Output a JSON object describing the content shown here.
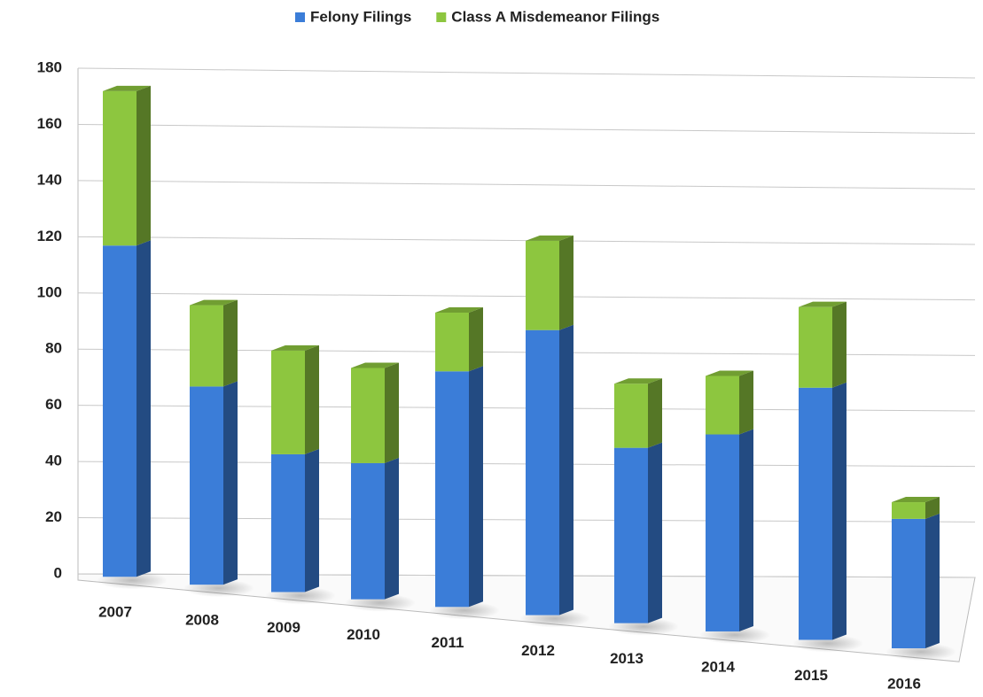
{
  "chart_data": {
    "type": "bar3d_stacked",
    "categories": [
      "2007",
      "2008",
      "2009",
      "2010",
      "2011",
      "2012",
      "2013",
      "2014",
      "2015",
      "2016"
    ],
    "series": [
      {
        "name": "Felony Filings",
        "color": "#3b7dd8",
        "values": [
          117,
          67,
          43,
          40,
          73,
          88,
          46,
          51,
          68,
          21
        ]
      },
      {
        "name": "Class A Misdemeanor Filings",
        "color": "#8dc63f",
        "values": [
          55,
          29,
          37,
          34,
          21,
          32,
          23,
          21,
          29,
          6
        ]
      }
    ],
    "ylim": [
      0,
      180
    ],
    "yticks": [
      0,
      20,
      40,
      60,
      80,
      100,
      120,
      140,
      160,
      180
    ],
    "grid": true,
    "legend": "top"
  }
}
